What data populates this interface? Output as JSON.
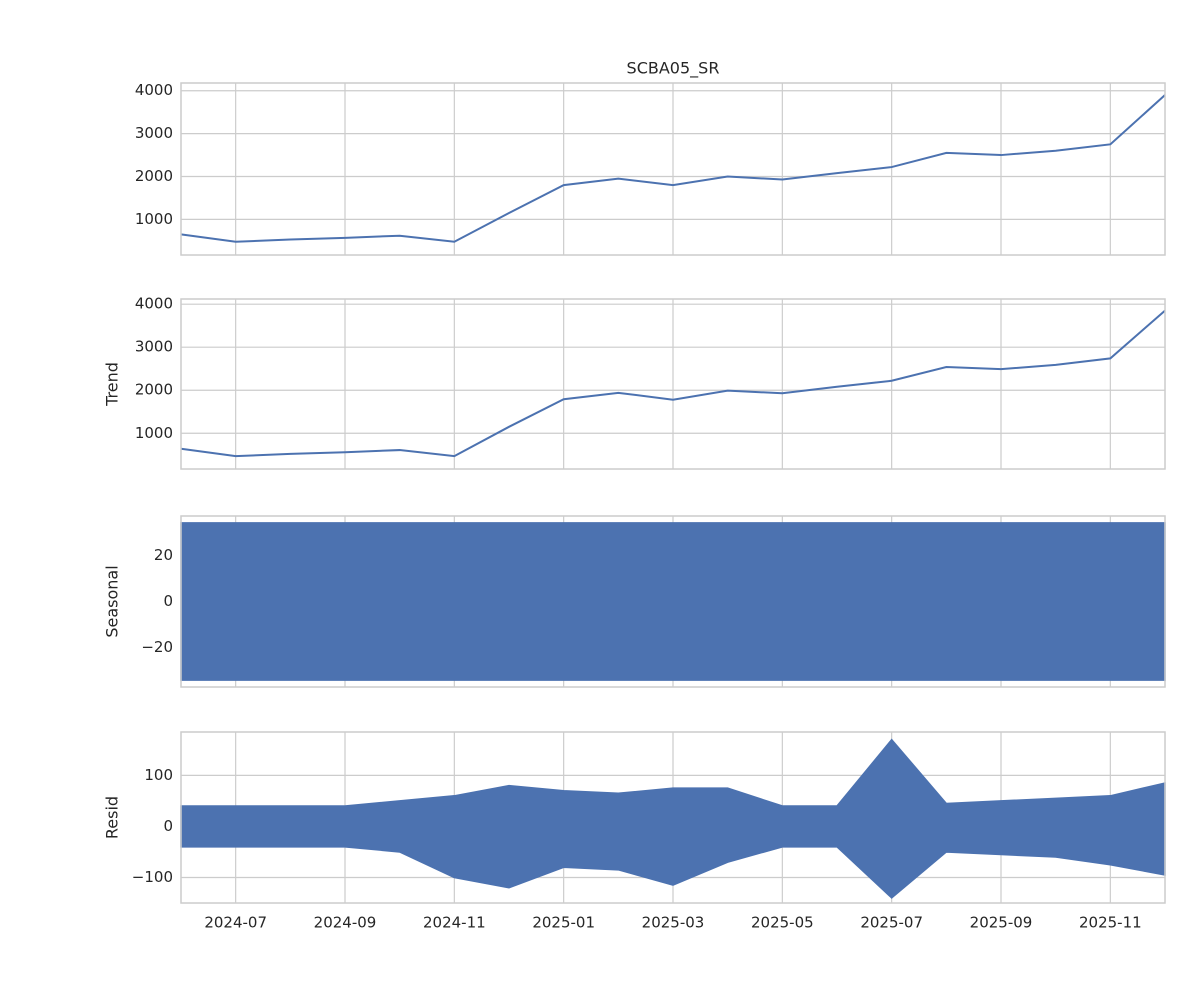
{
  "chart_data": [
    {
      "type": "line",
      "title": "SCBA05_SR",
      "color": "#4c72b0",
      "grid": true,
      "x": [
        "2024-06",
        "2024-07",
        "2024-08",
        "2024-09",
        "2024-10",
        "2024-11",
        "2024-12",
        "2025-01",
        "2025-02",
        "2025-03",
        "2025-04",
        "2025-05",
        "2025-06",
        "2025-07",
        "2025-08",
        "2025-09",
        "2025-10",
        "2025-11",
        "2025-12"
      ],
      "values": [
        650,
        480,
        530,
        570,
        620,
        480,
        1150,
        1800,
        1950,
        1800,
        2000,
        1930,
        2080,
        2220,
        2550,
        2500,
        2600,
        2750,
        3900
      ],
      "xlim": [
        "2024-06",
        "2025-12"
      ],
      "xticks": [
        "2024-07",
        "2024-09",
        "2024-11",
        "2025-01",
        "2025-03",
        "2025-05",
        "2025-07",
        "2025-09",
        "2025-11"
      ],
      "ylim": [
        170,
        4180
      ],
      "yticks": [
        1000,
        2000,
        3000,
        4000
      ]
    },
    {
      "type": "line",
      "ylabel": "Trend",
      "color": "#4c72b0",
      "grid": true,
      "x": [
        "2024-06",
        "2024-07",
        "2024-08",
        "2024-09",
        "2024-10",
        "2024-11",
        "2024-12",
        "2025-01",
        "2025-02",
        "2025-03",
        "2025-04",
        "2025-05",
        "2025-06",
        "2025-07",
        "2025-08",
        "2025-09",
        "2025-10",
        "2025-11",
        "2025-12"
      ],
      "values": [
        640,
        470,
        520,
        560,
        610,
        470,
        1150,
        1790,
        1940,
        1780,
        1990,
        1930,
        2080,
        2220,
        2540,
        2490,
        2590,
        2740,
        3850
      ],
      "xlim": [
        "2024-06",
        "2025-12"
      ],
      "xticks": [
        "2024-07",
        "2024-09",
        "2024-11",
        "2025-01",
        "2025-03",
        "2025-05",
        "2025-07",
        "2025-09",
        "2025-11"
      ],
      "ylim": [
        170,
        4120
      ],
      "yticks": [
        1000,
        2000,
        3000,
        4000
      ]
    },
    {
      "type": "band",
      "ylabel": "Seasonal",
      "color": "#4c72b0",
      "grid": true,
      "x": [
        "2024-06",
        "2024-07",
        "2024-08",
        "2024-09",
        "2024-10",
        "2024-11",
        "2024-12",
        "2025-01",
        "2025-02",
        "2025-03",
        "2025-04",
        "2025-05",
        "2025-06",
        "2025-07",
        "2025-08",
        "2025-09",
        "2025-10",
        "2025-11",
        "2025-12"
      ],
      "series": [
        {
          "values": [
            34,
            34,
            34,
            34,
            34,
            34,
            34,
            34,
            34,
            34,
            34,
            34,
            34,
            34,
            34,
            34,
            34,
            34,
            34
          ]
        },
        {
          "values": [
            -34,
            -34,
            -34,
            -34,
            -34,
            -34,
            -34,
            -34,
            -34,
            -34,
            -34,
            -34,
            -34,
            -34,
            -34,
            -34,
            -34,
            -34,
            -34
          ]
        }
      ],
      "xlim": [
        "2024-06",
        "2025-12"
      ],
      "xticks": [
        "2024-07",
        "2024-09",
        "2024-11",
        "2025-01",
        "2025-03",
        "2025-05",
        "2025-07",
        "2025-09",
        "2025-11"
      ],
      "ylim": [
        -37,
        37
      ],
      "yticks": [
        {
          "value": -20,
          "label": "−20"
        },
        0,
        20
      ]
    },
    {
      "type": "band",
      "ylabel": "Resid",
      "color": "#4c72b0",
      "grid": true,
      "x": [
        "2024-06",
        "2024-07",
        "2024-08",
        "2024-09",
        "2024-10",
        "2024-11",
        "2024-12",
        "2025-01",
        "2025-02",
        "2025-03",
        "2025-04",
        "2025-05",
        "2025-06",
        "2025-07",
        "2025-08",
        "2025-09",
        "2025-10",
        "2025-11",
        "2025-12"
      ],
      "series": [
        {
          "values": [
            40,
            40,
            40,
            40,
            50,
            60,
            80,
            70,
            65,
            75,
            75,
            40,
            40,
            170,
            45,
            50,
            55,
            60,
            85
          ]
        },
        {
          "values": [
            -40,
            -40,
            -40,
            -40,
            -50,
            -100,
            -120,
            -80,
            -85,
            -115,
            -70,
            -40,
            -40,
            -140,
            -50,
            -55,
            -60,
            -75,
            -95
          ]
        }
      ],
      "xlim": [
        "2024-06",
        "2025-12"
      ],
      "xticks": [
        "2024-07",
        "2024-09",
        "2024-11",
        "2025-01",
        "2025-03",
        "2025-05",
        "2025-07",
        "2025-09",
        "2025-11"
      ],
      "ylim": [
        -150,
        185
      ],
      "yticks": [
        {
          "value": -100,
          "label": "−100"
        },
        0,
        100
      ]
    }
  ]
}
